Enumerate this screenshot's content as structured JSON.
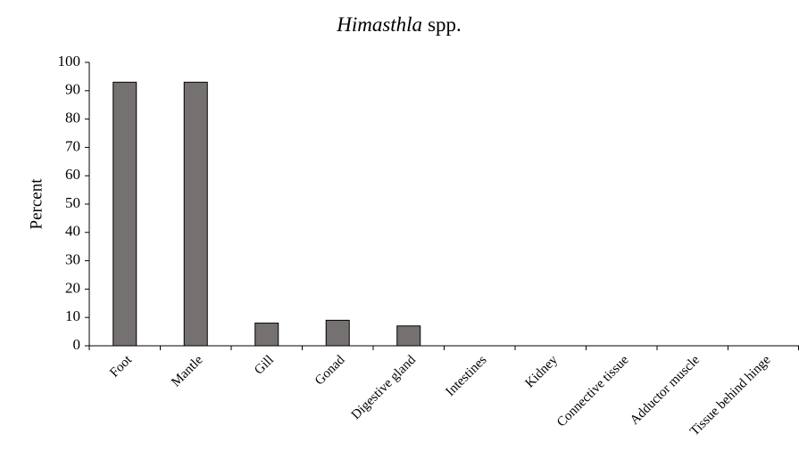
{
  "chart_data": {
    "type": "bar",
    "title": [
      "Himasthla",
      "spp."
    ],
    "ylabel": "Percent",
    "categories": [
      "Foot",
      "Mantle",
      "Gill",
      "Gonad",
      "Digestive gland",
      "Intestines",
      "Kidney",
      "Connective tissue",
      "Adductor muscle",
      "Tissue behind hinge"
    ],
    "values": [
      93,
      93,
      8,
      9,
      7,
      0,
      0,
      0,
      0,
      0
    ],
    "color": "#767171",
    "ylim": [
      0,
      100
    ],
    "yticks": [
      0,
      10,
      20,
      30,
      40,
      50,
      60,
      70,
      80,
      90,
      100
    ],
    "grid": false
  }
}
